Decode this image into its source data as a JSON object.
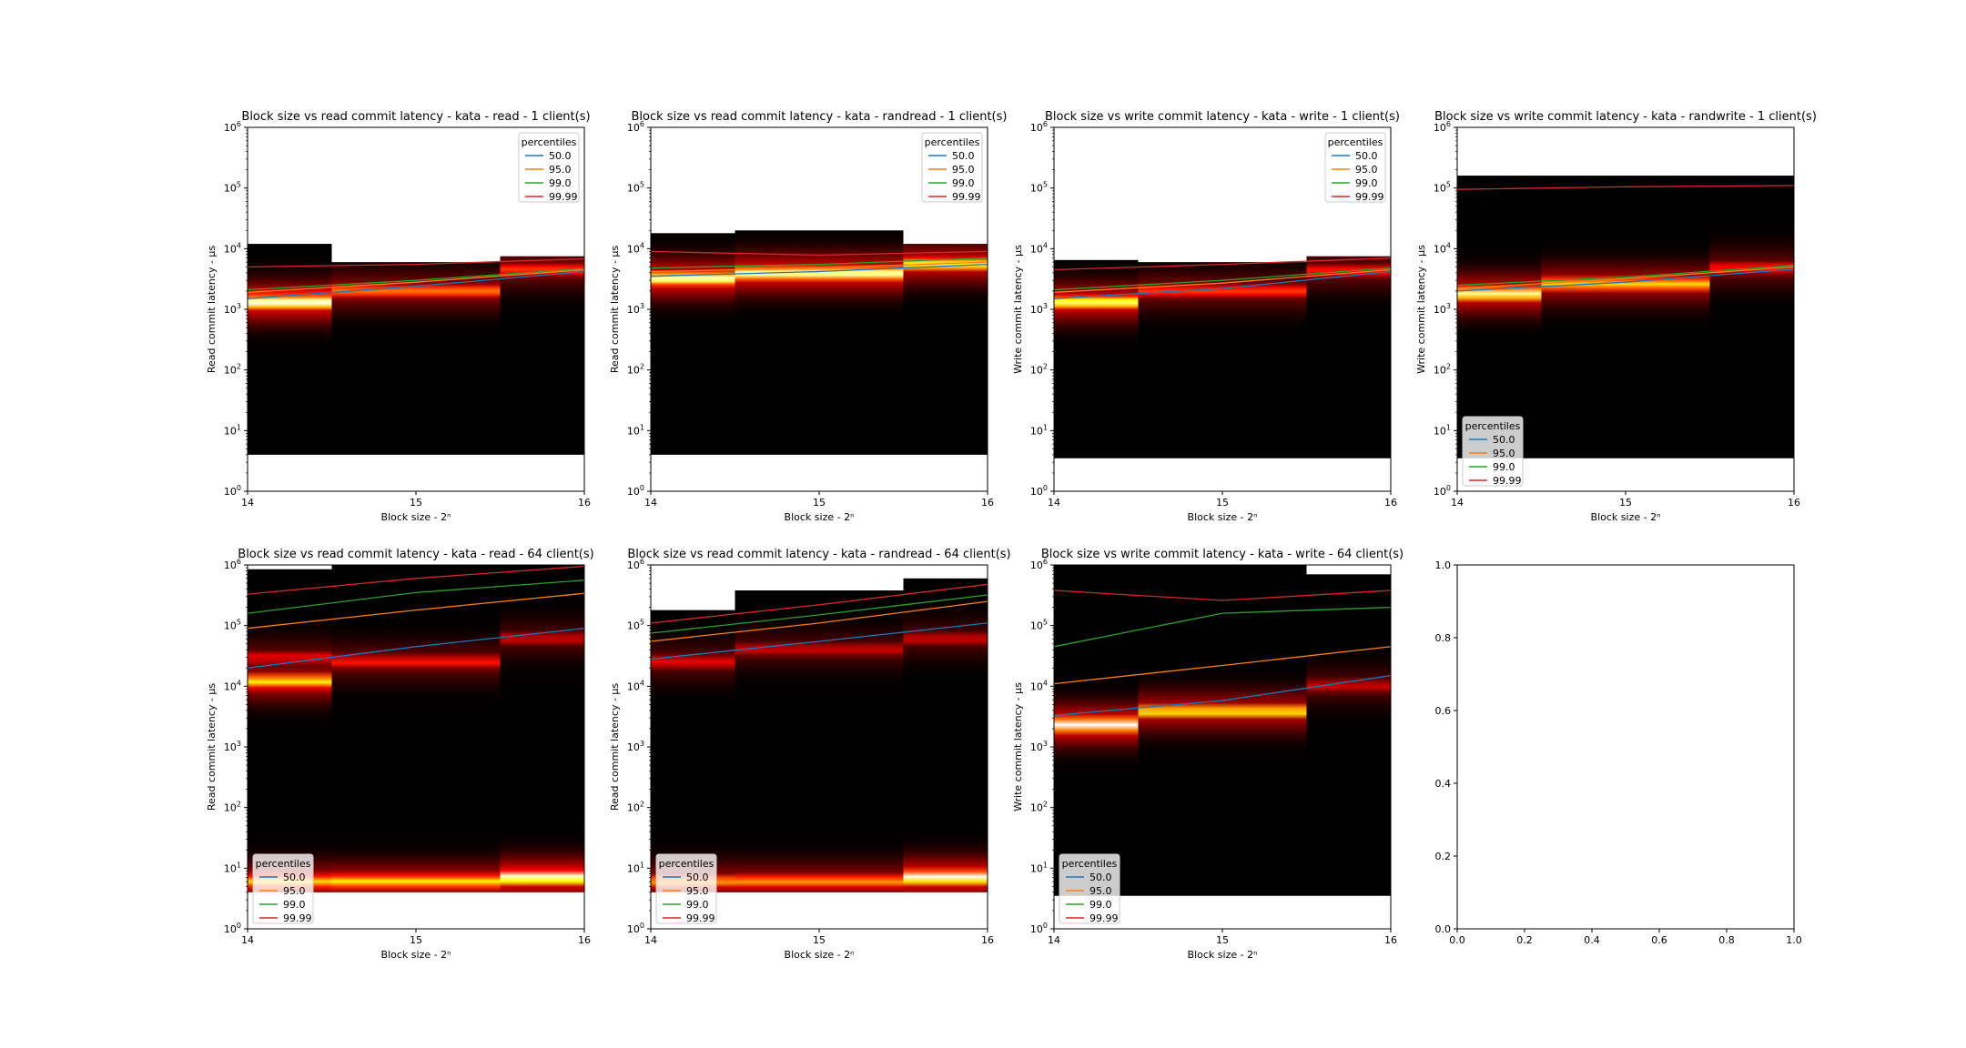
{
  "figure": {
    "percentile_colors": {
      "50.0": "#1f77b4",
      "95.0": "#ff7f0e",
      "99.0": "#2ca02c",
      "99.99": "#d62728"
    },
    "heatmap_colormap": "hot",
    "background": "#ffffff"
  },
  "chart_data": [
    {
      "type": "heatmap",
      "title": "Block size vs read commit latency - kata - read - 1 client(s)",
      "xlabel": "Block size - 2ⁿ",
      "ylabel": "Read commit latency - μs",
      "xticks": [
        "14",
        "15",
        "16"
      ],
      "xlim": [
        14,
        16
      ],
      "ylim": [
        1,
        1000000
      ],
      "yscale": "log",
      "legend": {
        "title": "percentiles",
        "entries": [
          "50.0",
          "95.0",
          "99.0",
          "99.99"
        ],
        "position": "upper-right"
      },
      "columns": [
        {
          "x0": 14,
          "x1": 14.5,
          "top": 12000,
          "bottom": 4,
          "bands": [
            {
              "center": 1300,
              "intensity": 1.0
            },
            {
              "center": 1800,
              "intensity": 0.4
            }
          ]
        },
        {
          "x0": 14.5,
          "x1": 15.5,
          "top": 6000,
          "bottom": 4,
          "bands": [
            {
              "center": 2000,
              "intensity": 0.55
            }
          ]
        },
        {
          "x0": 15.5,
          "x1": 16,
          "top": 7500,
          "bottom": 4,
          "bands": [
            {
              "center": 4500,
              "intensity": 0.45
            }
          ]
        }
      ],
      "series": [
        {
          "name": "50.0",
          "x": [
            14,
            15,
            16
          ],
          "values": [
            1500,
            2400,
            4200
          ]
        },
        {
          "name": "95.0",
          "x": [
            14,
            15,
            16
          ],
          "values": [
            1900,
            2800,
            4500
          ]
        },
        {
          "name": "99.0",
          "x": [
            14,
            15,
            16
          ],
          "values": [
            2100,
            3000,
            4700
          ]
        },
        {
          "name": "99.99",
          "x": [
            14,
            15,
            16
          ],
          "values": [
            5000,
            5500,
            6800
          ]
        }
      ]
    },
    {
      "type": "heatmap",
      "title": "Block size vs read commit latency - kata - randread - 1 client(s)",
      "xlabel": "Block size - 2ⁿ",
      "ylabel": "Read commit latency - μs",
      "xticks": [
        "14",
        "15",
        "16"
      ],
      "xlim": [
        14,
        16
      ],
      "ylim": [
        1,
        1000000
      ],
      "yscale": "log",
      "legend": {
        "title": "percentiles",
        "entries": [
          "50.0",
          "95.0",
          "99.0",
          "99.99"
        ],
        "position": "upper-right"
      },
      "columns": [
        {
          "x0": 14,
          "x1": 14.5,
          "top": 18000,
          "bottom": 4,
          "bands": [
            {
              "center": 3200,
              "intensity": 0.95
            }
          ]
        },
        {
          "x0": 14.5,
          "x1": 15.5,
          "top": 20000,
          "bottom": 4,
          "bands": [
            {
              "center": 3900,
              "intensity": 0.95
            }
          ]
        },
        {
          "x0": 15.5,
          "x1": 16,
          "top": 12000,
          "bottom": 4,
          "bands": [
            {
              "center": 5500,
              "intensity": 0.8
            }
          ]
        }
      ],
      "series": [
        {
          "name": "50.0",
          "x": [
            14,
            15,
            16
          ],
          "values": [
            3500,
            4200,
            5500
          ]
        },
        {
          "name": "95.0",
          "x": [
            14,
            15,
            16
          ],
          "values": [
            4200,
            4800,
            6000
          ]
        },
        {
          "name": "99.0",
          "x": [
            14,
            15,
            16
          ],
          "values": [
            4800,
            5500,
            7000
          ]
        },
        {
          "name": "99.99",
          "x": [
            14,
            15,
            16
          ],
          "values": [
            9000,
            7800,
            9000
          ]
        }
      ]
    },
    {
      "type": "heatmap",
      "title": "Block size vs write commit latency - kata - write - 1 client(s)",
      "xlabel": "Block size - 2ⁿ",
      "ylabel": "Write commit latency - μs",
      "xticks": [
        "14",
        "15",
        "16"
      ],
      "xlim": [
        14,
        16
      ],
      "ylim": [
        1,
        1000000
      ],
      "yscale": "log",
      "legend": {
        "title": "percentiles",
        "entries": [
          "50.0",
          "95.0",
          "99.0",
          "99.99"
        ],
        "position": "upper-right"
      },
      "columns": [
        {
          "x0": 14,
          "x1": 14.5,
          "top": 6500,
          "bottom": 3.5,
          "bands": [
            {
              "center": 1300,
              "intensity": 0.85
            }
          ]
        },
        {
          "x0": 14.5,
          "x1": 15.5,
          "top": 6000,
          "bottom": 3.5,
          "bands": [
            {
              "center": 2000,
              "intensity": 0.45
            }
          ]
        },
        {
          "x0": 15.5,
          "x1": 16,
          "top": 7500,
          "bottom": 3.5,
          "bands": [
            {
              "center": 4300,
              "intensity": 0.4
            }
          ]
        }
      ],
      "series": [
        {
          "name": "50.0",
          "x": [
            14,
            15,
            16
          ],
          "values": [
            1500,
            2200,
            4200
          ]
        },
        {
          "name": "95.0",
          "x": [
            14,
            15,
            16
          ],
          "values": [
            1900,
            2700,
            4500
          ]
        },
        {
          "name": "99.0",
          "x": [
            14,
            15,
            16
          ],
          "values": [
            2100,
            3000,
            4800
          ]
        },
        {
          "name": "99.99",
          "x": [
            14,
            15,
            16
          ],
          "values": [
            4500,
            5500,
            7000
          ]
        }
      ]
    },
    {
      "type": "heatmap",
      "title": "Block size vs write commit latency - kata - randwrite - 1 client(s)",
      "xlabel": "Block size - 2ⁿ",
      "ylabel": "Write commit latency - μs",
      "xticks": [
        "14",
        "15",
        "16"
      ],
      "xlim": [
        14,
        16
      ],
      "ylim": [
        1,
        1000000
      ],
      "yscale": "log",
      "legend": {
        "title": "percentiles",
        "entries": [
          "50.0",
          "95.0",
          "99.0",
          "99.99"
        ],
        "position": "lower-left"
      },
      "columns": [
        {
          "x0": 14,
          "x1": 14.5,
          "top": 160000,
          "bottom": 3.5,
          "bands": [
            {
              "center": 1800,
              "intensity": 0.9
            }
          ]
        },
        {
          "x0": 14.5,
          "x1": 15.5,
          "top": 160000,
          "bottom": 3.5,
          "bands": [
            {
              "center": 2600,
              "intensity": 0.7
            }
          ]
        },
        {
          "x0": 15.5,
          "x1": 16,
          "top": 160000,
          "bottom": 3.5,
          "bands": [
            {
              "center": 4800,
              "intensity": 0.4
            }
          ]
        }
      ],
      "series": [
        {
          "name": "50.0",
          "x": [
            14,
            15,
            16
          ],
          "values": [
            2000,
            2800,
            4600
          ]
        },
        {
          "name": "95.0",
          "x": [
            14,
            15,
            16
          ],
          "values": [
            2200,
            3200,
            5000
          ]
        },
        {
          "name": "99.0",
          "x": [
            14,
            15,
            16
          ],
          "values": [
            2500,
            3400,
            5300
          ]
        },
        {
          "name": "99.99",
          "x": [
            14,
            15,
            16
          ],
          "values": [
            95000,
            105000,
            110000
          ]
        }
      ]
    },
    {
      "type": "heatmap",
      "title": "Block size vs read commit latency - kata - read - 64 client(s)",
      "xlabel": "Block size - 2ⁿ",
      "ylabel": "Read commit latency - μs",
      "xticks": [
        "14",
        "15",
        "16"
      ],
      "xlim": [
        14,
        16
      ],
      "ylim": [
        1,
        1000000
      ],
      "yscale": "log",
      "legend": {
        "title": "percentiles",
        "entries": [
          "50.0",
          "95.0",
          "99.0",
          "99.99"
        ],
        "position": "lower-left"
      },
      "columns": [
        {
          "x0": 14,
          "x1": 14.5,
          "top": 850000,
          "bottom": 4,
          "bands": [
            {
              "center": 12000,
              "intensity": 0.75
            },
            {
              "center": 30000,
              "intensity": 0.35
            },
            {
              "center": 6,
              "intensity": 0.7
            }
          ]
        },
        {
          "x0": 14.5,
          "x1": 15.5,
          "top": 1000000,
          "bottom": 4,
          "bands": [
            {
              "center": 25000,
              "intensity": 0.4
            },
            {
              "center": 6,
              "intensity": 0.75
            }
          ]
        },
        {
          "x0": 15.5,
          "x1": 16,
          "top": 1000000,
          "bottom": 4,
          "bands": [
            {
              "center": 60000,
              "intensity": 0.3
            },
            {
              "center": 7,
              "intensity": 1.0
            }
          ]
        }
      ],
      "series": [
        {
          "name": "50.0",
          "x": [
            14,
            15,
            16
          ],
          "values": [
            20000,
            45000,
            90000
          ]
        },
        {
          "name": "95.0",
          "x": [
            14,
            15,
            16
          ],
          "values": [
            90000,
            180000,
            340000
          ]
        },
        {
          "name": "99.0",
          "x": [
            14,
            15,
            16
          ],
          "values": [
            160000,
            350000,
            560000
          ]
        },
        {
          "name": "99.99",
          "x": [
            14,
            15,
            16
          ],
          "values": [
            330000,
            600000,
            950000
          ]
        }
      ]
    },
    {
      "type": "heatmap",
      "title": "Block size vs read commit latency - kata - randread - 64 client(s)",
      "xlabel": "Block size - 2ⁿ",
      "ylabel": "Read commit latency - μs",
      "xticks": [
        "14",
        "15",
        "16"
      ],
      "xlim": [
        14,
        16
      ],
      "ylim": [
        1,
        1000000
      ],
      "yscale": "log",
      "legend": {
        "title": "percentiles",
        "entries": [
          "50.0",
          "95.0",
          "99.0",
          "99.99"
        ],
        "position": "lower-left"
      },
      "columns": [
        {
          "x0": 14,
          "x1": 14.5,
          "top": 180000,
          "bottom": 4,
          "bands": [
            {
              "center": 25000,
              "intensity": 0.35
            },
            {
              "center": 6,
              "intensity": 0.6
            }
          ]
        },
        {
          "x0": 14.5,
          "x1": 15.5,
          "top": 380000,
          "bottom": 4,
          "bands": [
            {
              "center": 40000,
              "intensity": 0.3
            },
            {
              "center": 6,
              "intensity": 0.6
            }
          ]
        },
        {
          "x0": 15.5,
          "x1": 16,
          "top": 600000,
          "bottom": 4,
          "bands": [
            {
              "center": 60000,
              "intensity": 0.3
            },
            {
              "center": 7,
              "intensity": 1.0
            }
          ]
        }
      ],
      "series": [
        {
          "name": "50.0",
          "x": [
            14,
            15,
            16
          ],
          "values": [
            28000,
            55000,
            110000
          ]
        },
        {
          "name": "95.0",
          "x": [
            14,
            15,
            16
          ],
          "values": [
            55000,
            110000,
            250000
          ]
        },
        {
          "name": "99.0",
          "x": [
            14,
            15,
            16
          ],
          "values": [
            75000,
            150000,
            320000
          ]
        },
        {
          "name": "99.99",
          "x": [
            14,
            15,
            16
          ],
          "values": [
            110000,
            220000,
            480000
          ]
        }
      ]
    },
    {
      "type": "heatmap",
      "title": "Block size vs write commit latency - kata - write - 64 client(s)",
      "xlabel": "Block size - 2ⁿ",
      "ylabel": "Write commit latency - μs",
      "xticks": [
        "14",
        "15",
        "16"
      ],
      "xlim": [
        14,
        16
      ],
      "ylim": [
        1,
        1000000
      ],
      "yscale": "log",
      "legend": {
        "title": "percentiles",
        "entries": [
          "50.0",
          "95.0",
          "99.0",
          "99.99"
        ],
        "position": "lower-left"
      },
      "columns": [
        {
          "x0": 14,
          "x1": 14.5,
          "top": 1000000,
          "bottom": 3.5,
          "bands": [
            {
              "center": 2300,
              "intensity": 1.0
            }
          ]
        },
        {
          "x0": 14.5,
          "x1": 15.5,
          "top": 1000000,
          "bottom": 3.5,
          "bands": [
            {
              "center": 3800,
              "intensity": 0.75
            }
          ]
        },
        {
          "x0": 15.5,
          "x1": 16,
          "top": 700000,
          "bottom": 3.5,
          "bands": [
            {
              "center": 10000,
              "intensity": 0.3
            }
          ]
        }
      ],
      "series": [
        {
          "name": "50.0",
          "x": [
            14,
            15,
            16
          ],
          "values": [
            3300,
            5800,
            15000
          ]
        },
        {
          "name": "95.0",
          "x": [
            14,
            15,
            16
          ],
          "values": [
            11000,
            22000,
            45000
          ]
        },
        {
          "name": "99.0",
          "x": [
            14,
            15,
            16
          ],
          "values": [
            45000,
            160000,
            200000
          ]
        },
        {
          "name": "99.99",
          "x": [
            14,
            15,
            16
          ],
          "values": [
            380000,
            260000,
            380000
          ]
        }
      ]
    },
    {
      "type": "line",
      "title": "",
      "xlabel": "",
      "ylabel": "",
      "xticks": [
        "0.0",
        "0.2",
        "0.4",
        "0.6",
        "0.8",
        "1.0"
      ],
      "yticks": [
        "0.0",
        "0.2",
        "0.4",
        "0.6",
        "0.8",
        "1.0"
      ],
      "xlim": [
        0,
        1
      ],
      "ylim": [
        0,
        1
      ],
      "series": []
    }
  ]
}
